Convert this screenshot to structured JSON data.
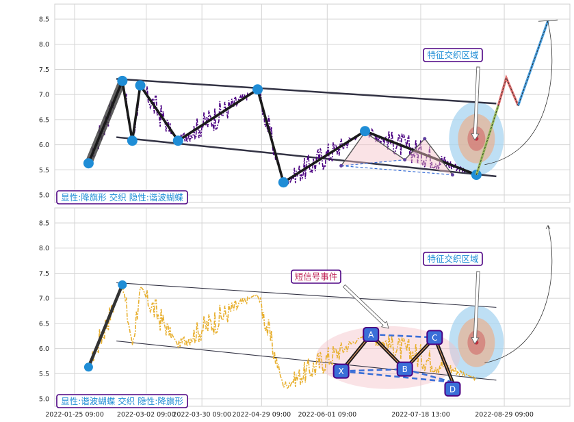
{
  "colors": {
    "top_price": "#4b0082",
    "bottom_price": "#e8b030",
    "channel": "#333344",
    "zigzag": "#1a1a1a",
    "pivot": "#1f8dd6",
    "box_border": "#4b0082",
    "box_text_top": "#1f8dd6",
    "box_text_event": "#c0285a",
    "proj_up_a": "#e07070",
    "proj_up_b": "#4aa0e0",
    "harmonic_fill": "#f4c0c8",
    "harmonic_dash": "#3a6fd8",
    "harmonic_point": "#3a6fd8",
    "zone_outer": "#a8d4f0",
    "zone_mid": "#e8b090",
    "zone_inner": "#d06060"
  },
  "chart_data": [
    {
      "type": "line",
      "panel": "top",
      "grid": true,
      "ylim": [
        4.85,
        8.8
      ],
      "yticks": [
        "5.0",
        "5.5",
        "6.0",
        "6.5",
        "7.0",
        "7.5",
        "8.0",
        "8.5"
      ],
      "annotations": {
        "pattern_label": "显性:降旗形 交织 隐性:谐波蝴蝶",
        "zone_label": "特征交织区域"
      },
      "pivots": [
        {
          "date": "2022-02-01",
          "value": 5.63
        },
        {
          "date": "2022-02-18",
          "value": 7.27
        },
        {
          "date": "2022-02-23",
          "value": 6.08
        },
        {
          "date": "2022-02-27",
          "value": 7.18
        },
        {
          "date": "2022-03-18",
          "value": 6.08
        },
        {
          "date": "2022-04-27",
          "value": 7.1
        },
        {
          "date": "2022-05-10",
          "value": 5.25
        },
        {
          "date": "2022-06-20",
          "value": 6.27
        },
        {
          "date": "2022-08-15",
          "value": 5.4
        }
      ],
      "channel_upper": [
        {
          "date": "2022-02-15",
          "value": 7.31
        },
        {
          "date": "2022-08-25",
          "value": 6.82
        }
      ],
      "channel_lower": [
        {
          "date": "2022-02-15",
          "value": 6.15
        },
        {
          "date": "2022-08-25",
          "value": 5.37
        }
      ],
      "projection": [
        {
          "date": "2022-08-15",
          "value": 5.4
        },
        {
          "date": "2022-08-26",
          "value": 6.78
        },
        {
          "date": "2022-08-30",
          "value": 7.33
        },
        {
          "date": "2022-09-05",
          "value": 6.78
        },
        {
          "date": "2022-09-20",
          "value": 8.47
        }
      ]
    },
    {
      "type": "line",
      "panel": "bottom",
      "grid": true,
      "ylim": [
        4.85,
        8.8
      ],
      "yticks": [
        "5.0",
        "5.5",
        "6.0",
        "6.5",
        "7.0",
        "7.5",
        "8.0",
        "8.5"
      ],
      "xticks": [
        "2022-01-25 09:00",
        "2022-03-02 09:00",
        "2022-03-30 09:00",
        "2022-04-29 09:00",
        "2022-06-01 09:00",
        "2022-07-18 13:00",
        "2022-08-29 09:00"
      ],
      "annotations": {
        "pattern_label": "显性:谐波蝴蝶 交织 隐性:降旗形",
        "zone_label": "特征交织区域",
        "event_label": "短信号事件"
      },
      "pivots": [
        {
          "date": "2022-02-01",
          "value": 5.63
        },
        {
          "date": "2022-02-18",
          "value": 7.27
        }
      ],
      "channel_upper": [
        {
          "date": "2022-02-15",
          "value": 7.31
        },
        {
          "date": "2022-08-25",
          "value": 6.82
        }
      ],
      "channel_lower": [
        {
          "date": "2022-02-15",
          "value": 6.15
        },
        {
          "date": "2022-08-25",
          "value": 5.37
        }
      ],
      "harmonic": [
        {
          "label": "X",
          "date": "2022-06-08",
          "value": 5.55
        },
        {
          "label": "A",
          "date": "2022-06-23",
          "value": 6.28
        },
        {
          "label": "B",
          "date": "2022-07-10",
          "value": 5.59
        },
        {
          "label": "C",
          "date": "2022-07-25",
          "value": 6.22
        },
        {
          "label": "D",
          "date": "2022-08-03",
          "value": 5.33
        }
      ]
    }
  ]
}
